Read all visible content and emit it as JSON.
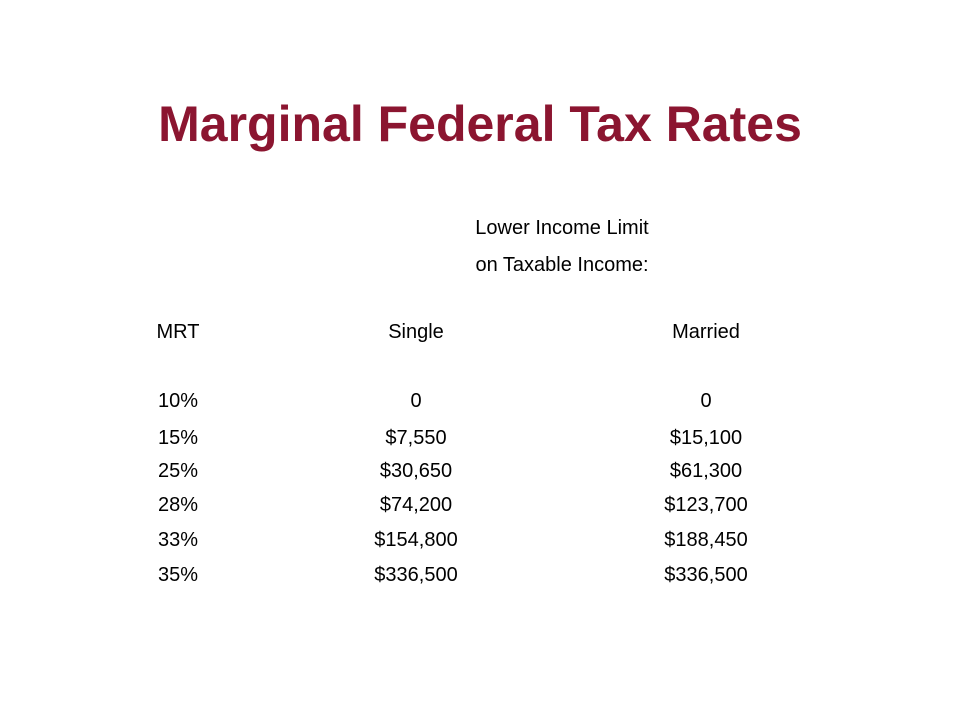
{
  "title": "Marginal Federal Tax Rates",
  "subheading": {
    "line1": "Lower Income Limit",
    "line2": "on Taxable Income:"
  },
  "table": {
    "headers": [
      "MRT",
      "Single",
      "Married"
    ],
    "rows": [
      [
        "10%",
        "0",
        "0"
      ],
      [
        "15%",
        "$7,550",
        "$15,100"
      ],
      [
        "25%",
        "$30,650",
        "$61,300"
      ],
      [
        "28%",
        "$74,200",
        "$123,700"
      ],
      [
        "33%",
        "$154,800",
        "$188,450"
      ],
      [
        "35%",
        "$336,500",
        "$336,500"
      ]
    ]
  },
  "colors": {
    "title": "#8b1530",
    "text": "#000000",
    "background": "#ffffff"
  }
}
